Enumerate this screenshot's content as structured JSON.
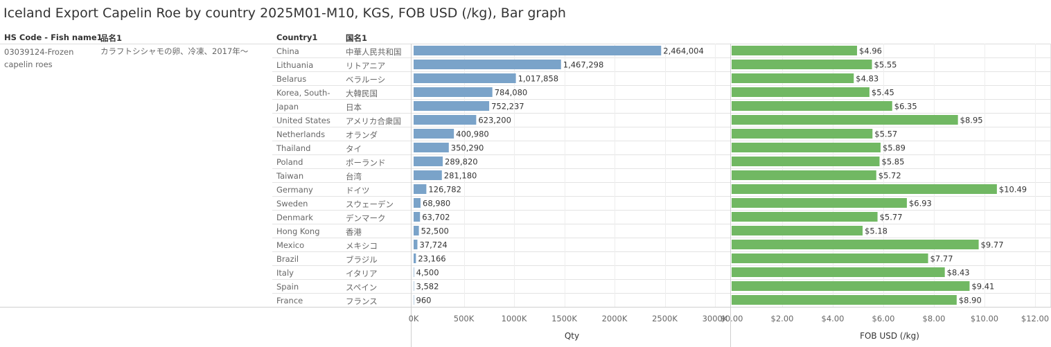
{
  "title": "Iceland Export Capelin Roe by country 2025M01-M10, KGS, FOB USD (/kg), Bar graph",
  "headers": {
    "hs_code": "HS Code - Fish name1",
    "jp_name": "品名1",
    "country": "Country1",
    "country_jp": "国名1"
  },
  "hs_code_value": "03039124-Frozen capelin roes",
  "jp_name_value": "カラフトシシャモの卵、冷凍、2017年〜",
  "colors": {
    "qty_bar": "#7aa3c9",
    "fob_bar": "#71b863"
  },
  "chart_data": [
    {
      "type": "bar",
      "orientation": "horizontal",
      "title": "Qty",
      "categories": [
        "China",
        "Lithuania",
        "Belarus",
        "Korea, South-",
        "Japan",
        "United States",
        "Netherlands",
        "Thailand",
        "Poland",
        "Taiwan",
        "Germany",
        "Sweden",
        "Denmark",
        "Hong Kong",
        "Mexico",
        "Brazil",
        "Italy",
        "Spain",
        "France"
      ],
      "categories_jp": [
        "中華人民共和国",
        "リトアニア",
        "ベラルーシ",
        "大韓民国",
        "日本",
        "アメリカ合衆国",
        "オランダ",
        "タイ",
        "ポーランド",
        "台湾",
        "ドイツ",
        "スウェーデン",
        "デンマーク",
        "香港",
        "メキシコ",
        "ブラジル",
        "イタリア",
        "スペイン",
        "フランス"
      ],
      "values": [
        2464004,
        1467298,
        1017858,
        784080,
        752237,
        623200,
        400980,
        350290,
        289820,
        281180,
        126782,
        68980,
        63702,
        52500,
        37724,
        23166,
        4500,
        3582,
        960
      ],
      "value_labels": [
        "2,464,004",
        "1,467,298",
        "1,017,858",
        "784,080",
        "752,237",
        "623,200",
        "400,980",
        "350,290",
        "289,820",
        "281,180",
        "126,782",
        "68,980",
        "63,702",
        "52,500",
        "37,724",
        "23,166",
        "4,500",
        "3,582",
        "960"
      ],
      "xlim": [
        0,
        3000000
      ],
      "ticks": [
        0,
        500000,
        1000000,
        1500000,
        2000000,
        2500000,
        3000000
      ],
      "tick_labels": [
        "0K",
        "500K",
        "1000K",
        "1500K",
        "2000K",
        "2500K",
        "3000K"
      ],
      "xlabel": "Qty",
      "grid": true
    },
    {
      "type": "bar",
      "orientation": "horizontal",
      "title": "FOB USD (/kg)",
      "categories": [
        "China",
        "Lithuania",
        "Belarus",
        "Korea, South-",
        "Japan",
        "United States",
        "Netherlands",
        "Thailand",
        "Poland",
        "Taiwan",
        "Germany",
        "Sweden",
        "Denmark",
        "Hong Kong",
        "Mexico",
        "Brazil",
        "Italy",
        "Spain",
        "France"
      ],
      "values": [
        4.96,
        5.55,
        4.83,
        5.45,
        6.35,
        8.95,
        5.57,
        5.89,
        5.85,
        5.72,
        10.49,
        6.93,
        5.77,
        5.18,
        9.77,
        7.77,
        8.43,
        9.41,
        8.9
      ],
      "value_labels": [
        "$4.96",
        "$5.55",
        "$4.83",
        "$5.45",
        "$6.35",
        "$8.95",
        "$5.57",
        "$5.89",
        "$5.85",
        "$5.72",
        "$10.49",
        "$6.93",
        "$5.77",
        "$5.18",
        "$9.77",
        "$7.77",
        "$8.43",
        "$9.41",
        "$8.90"
      ],
      "xlim": [
        0,
        12
      ],
      "ticks": [
        0,
        2,
        4,
        6,
        8,
        10,
        12
      ],
      "tick_labels": [
        "$0.00",
        "$2.00",
        "$4.00",
        "$6.00",
        "$8.00",
        "$10.00",
        "$12.00"
      ],
      "xlabel": "FOB USD (/kg)",
      "grid": true
    }
  ]
}
